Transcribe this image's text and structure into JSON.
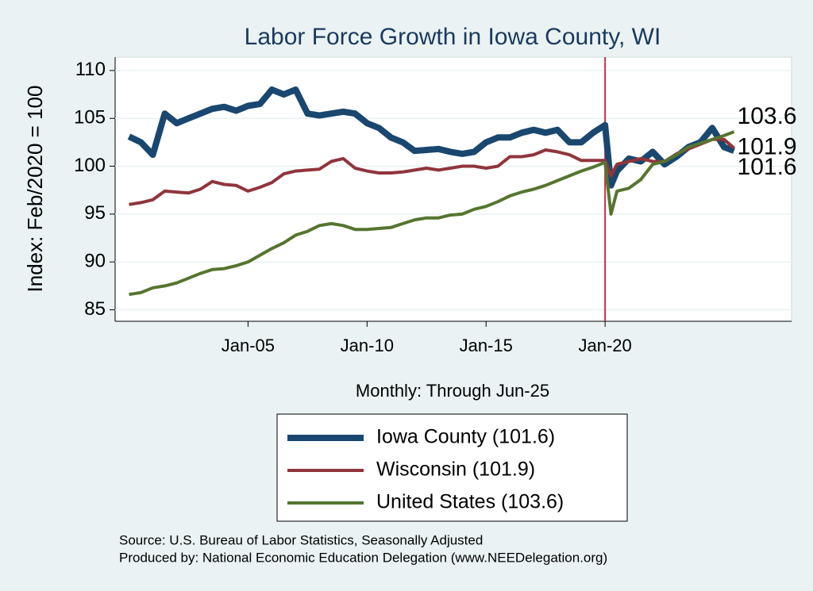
{
  "chart_data": {
    "type": "line",
    "title": "Labor Force Growth in Iowa  County, WI",
    "y_label": "Index: Feb/2020 = 100",
    "x_label": "Monthly: Through Jun-25",
    "source": [
      "Source: U.S. Bureau of Labor Statistics, Seasonally Adjusted",
      "Produced by: National Economic Education Delegation (www.NEEDelegation.org)"
    ],
    "x": [
      "Jan-00",
      "Jul-00",
      "Jan-01",
      "Jul-01",
      "Jan-02",
      "Jul-02",
      "Jan-03",
      "Jul-03",
      "Jan-04",
      "Jul-04",
      "Jan-05",
      "Jul-05",
      "Jan-06",
      "Jul-06",
      "Jan-07",
      "Jul-07",
      "Jan-08",
      "Jul-08",
      "Jan-09",
      "Jul-09",
      "Jan-10",
      "Jul-10",
      "Jan-11",
      "Jul-11",
      "Jan-12",
      "Jul-12",
      "Jan-13",
      "Jul-13",
      "Jan-14",
      "Jul-14",
      "Jan-15",
      "Jul-15",
      "Jan-16",
      "Jul-16",
      "Jan-17",
      "Jul-17",
      "Jan-18",
      "Jul-18",
      "Jan-19",
      "Jul-19",
      "Jan-20",
      "Apr-20",
      "Jul-20",
      "Jan-21",
      "Jul-21",
      "Jan-22",
      "Jul-22",
      "Jan-23",
      "Jul-23",
      "Jan-24",
      "Jul-24",
      "Jan-25",
      "Jun-25"
    ],
    "series": [
      {
        "name": "Iowa  County (101.6)",
        "color": "#1a476f",
        "width": 8,
        "values": [
          103.1,
          102.5,
          101.2,
          105.5,
          104.5,
          105,
          105.5,
          106,
          106.2,
          105.8,
          106.3,
          106.5,
          108,
          107.5,
          108,
          105.5,
          105.3,
          105.5,
          105.7,
          105.5,
          104.5,
          104,
          103,
          102.5,
          101.6,
          101.7,
          101.8,
          101.5,
          101.3,
          101.5,
          102.5,
          103,
          103,
          103.5,
          103.8,
          103.5,
          103.8,
          102.5,
          102.5,
          103.5,
          104.3,
          98,
          99.5,
          100.8,
          100.5,
          101.5,
          100.2,
          101,
          102,
          102.5,
          104,
          102,
          101.6
        ]
      },
      {
        "name": "Wisconsin (101.9)",
        "color": "#90353b",
        "width": 4,
        "values": [
          96,
          96.2,
          96.5,
          97.4,
          97.3,
          97.2,
          97.6,
          98.4,
          98.1,
          98,
          97.4,
          97.8,
          98.3,
          99.2,
          99.5,
          99.6,
          99.7,
          100.5,
          100.8,
          99.8,
          99.5,
          99.3,
          99.3,
          99.4,
          99.6,
          99.8,
          99.6,
          99.8,
          100,
          100,
          99.8,
          100,
          101,
          101,
          101.2,
          101.7,
          101.5,
          101.2,
          100.6,
          100.6,
          100.6,
          99,
          100.2,
          100.5,
          100.8,
          100.5,
          100.5,
          101.3,
          101.8,
          102.3,
          102.8,
          102.8,
          101.9
        ]
      },
      {
        "name": "United States (103.6)",
        "color": "#55752f",
        "width": 4,
        "values": [
          86.6,
          86.8,
          87.3,
          87.5,
          87.8,
          88.3,
          88.8,
          89.2,
          89.3,
          89.6,
          90,
          90.7,
          91.4,
          92,
          92.8,
          93.2,
          93.8,
          94,
          93.8,
          93.4,
          93.4,
          93.5,
          93.6,
          94,
          94.4,
          94.6,
          94.6,
          94.9,
          95,
          95.5,
          95.8,
          96.3,
          96.9,
          97.3,
          97.6,
          98,
          98.5,
          99,
          99.5,
          99.9,
          100.4,
          95,
          97.4,
          97.7,
          98.6,
          100.2,
          100.5,
          101.2,
          102,
          102.4,
          102.8,
          103.2,
          103.6
        ]
      }
    ],
    "xlim": [
      "Jun-99",
      "Nov-27"
    ],
    "xticks": [
      "Jan-05",
      "Jan-10",
      "Jan-15",
      "Jan-20"
    ],
    "ylim": [
      83.8,
      111.4
    ],
    "yticks": [
      85,
      90,
      95,
      100,
      105,
      110
    ],
    "grid": true,
    "vline": {
      "x": "Jan-20",
      "color": "#c0304a"
    }
  }
}
